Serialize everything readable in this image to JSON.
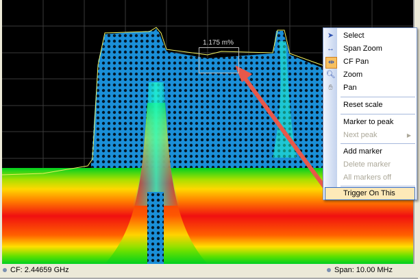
{
  "marker": {
    "readout": "1.175 m%"
  },
  "menu": {
    "items": [
      {
        "label": "Select",
        "icon": "pointer-arrow-icon",
        "enabled": true
      },
      {
        "label": "Span Zoom",
        "icon": "span-zoom-icon",
        "enabled": true
      },
      {
        "label": "CF Pan",
        "icon": "cf-pan-icon",
        "enabled": true,
        "selected": true
      },
      {
        "label": "Zoom",
        "icon": "magnifier-icon",
        "enabled": true
      },
      {
        "label": "Pan",
        "icon": "hand-icon",
        "enabled": true
      },
      {
        "label": "Reset scale",
        "enabled": true
      },
      {
        "label": "Marker to peak",
        "enabled": true
      },
      {
        "label": "Next peak",
        "enabled": false,
        "submenu": true
      },
      {
        "label": "Add marker",
        "enabled": true
      },
      {
        "label": "Delete marker",
        "enabled": false
      },
      {
        "label": "All markers off",
        "enabled": false
      },
      {
        "label": "Trigger On This",
        "enabled": true,
        "highlighted": true
      }
    ]
  },
  "status": {
    "cf": "CF: 2.44659 GHz",
    "span": "Span: 10.00 MHz"
  },
  "colors": {
    "trace": "#3aa8e8",
    "arrow": "#e8584a",
    "highlight": "#fde9b8"
  }
}
